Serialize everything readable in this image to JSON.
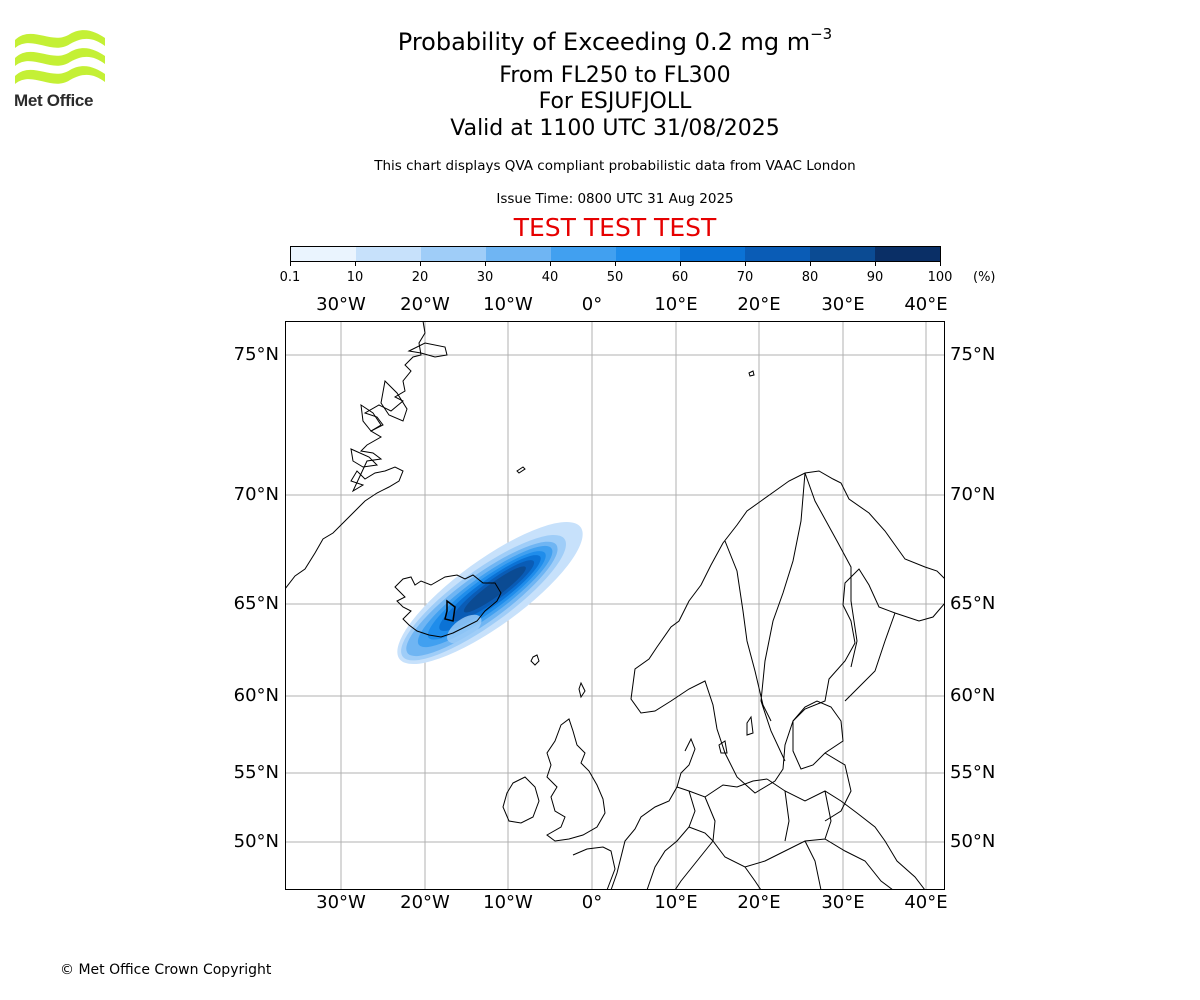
{
  "header": {
    "logo_text": "Met Office",
    "title_main": "Probability of Exceeding 0.2 mg m",
    "title_exp": "−3",
    "level": "From FL250 to FL300",
    "target": "For ESJUFJOLL",
    "valid": "Valid at 1100 UTC 31/08/2025",
    "note": "This chart displays QVA compliant probabilistic data from VAAC London",
    "issue": "Issue Time: 0800 UTC 31 Aug 2025",
    "test_banner": "TEST TEST TEST"
  },
  "colorbar": {
    "ticks": [
      "0.1",
      "10",
      "20",
      "30",
      "40",
      "50",
      "60",
      "70",
      "80",
      "90",
      "100"
    ],
    "unit": "(%)",
    "colors": [
      "#eaf4fe",
      "#c7e1fb",
      "#9fcdf8",
      "#6fb5f3",
      "#41a0f0",
      "#1f8deb",
      "#0b72d5",
      "#0a5cb6",
      "#0b4b93",
      "#0a2f66"
    ]
  },
  "map": {
    "lon_labels": [
      "30°W",
      "20°W",
      "10°W",
      "0°",
      "10°E",
      "20°E",
      "30°E",
      "40°E"
    ],
    "lat_labels": [
      "75°N",
      "70°N",
      "65°N",
      "60°N",
      "55°N",
      "50°N"
    ],
    "plume_center": "Esjufjoll, Iceland",
    "colors": {
      "coast": "#000000",
      "grid": "#b0b0b0",
      "frame": "#000000"
    }
  },
  "footer": {
    "copyright": "© Met Office Crown Copyright"
  }
}
